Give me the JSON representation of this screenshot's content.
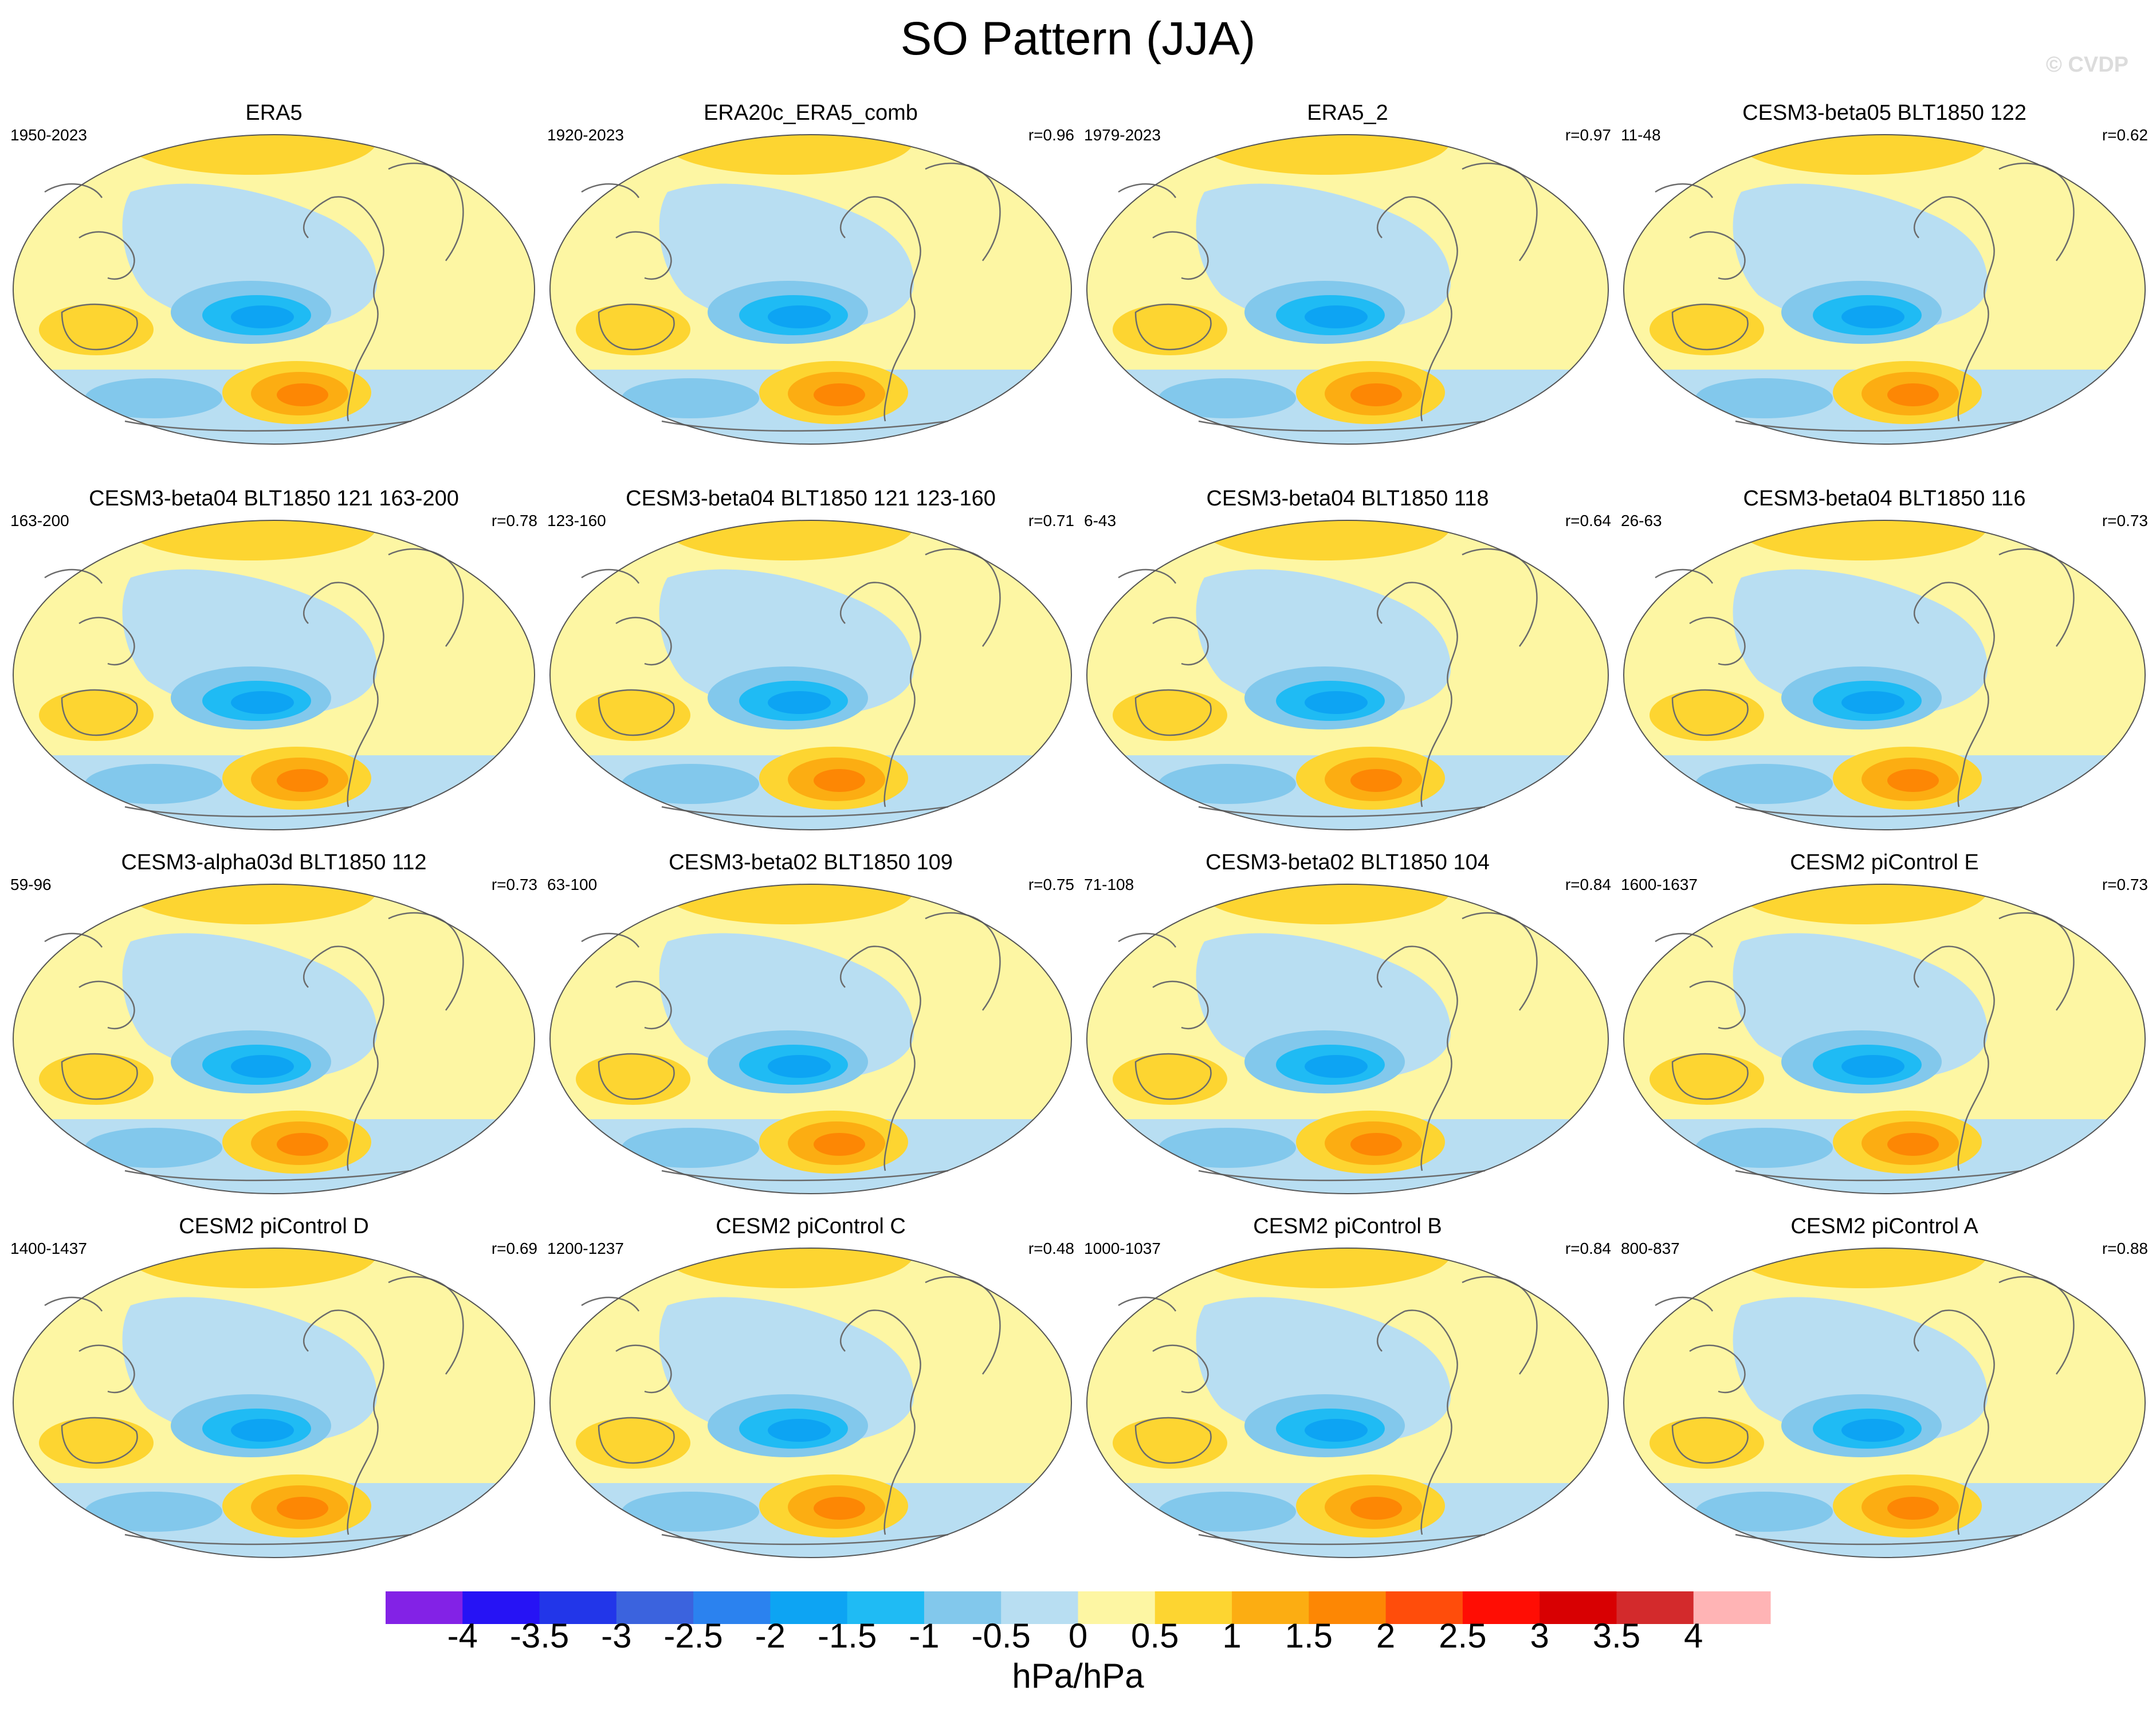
{
  "title": "SO Pattern (JJA)",
  "watermark": "© CVDP",
  "colorbar": {
    "unit_label": "hPa/hPa",
    "tick_labels": [
      "-4",
      "-3.5",
      "-3",
      "-2.5",
      "-2",
      "-1.5",
      "-1",
      "-0.5",
      "0",
      "0.5",
      "1",
      "1.5",
      "2",
      "2.5",
      "3",
      "3.5",
      "4"
    ],
    "colors": [
      "#8322e6",
      "#2613f5",
      "#2236e9",
      "#3b63de",
      "#2b82ef",
      "#0da4f3",
      "#1fbbf4",
      "#82c8ec",
      "#b8def2",
      "#fdf6a3",
      "#fdd531",
      "#fcad12",
      "#fd8704",
      "#ff4d0b",
      "#ff0d04",
      "#d80002",
      "#d32a2c",
      "#ffb4b5"
    ]
  },
  "panels": [
    {
      "title": "ERA5",
      "years": "1950-2023",
      "r": ""
    },
    {
      "title": "ERA20c_ERA5_comb",
      "years": "1920-2023",
      "r": "r=0.96"
    },
    {
      "title": "ERA5_2",
      "years": "1979-2023",
      "r": "r=0.97"
    },
    {
      "title": "CESM3-beta05 BLT1850 122",
      "years": "11-48",
      "r": "r=0.62"
    },
    {
      "title": "CESM3-beta04 BLT1850 121 163-200",
      "years": "163-200",
      "r": "r=0.78"
    },
    {
      "title": "CESM3-beta04 BLT1850 121 123-160",
      "years": "123-160",
      "r": "r=0.71"
    },
    {
      "title": "CESM3-beta04 BLT1850 118",
      "years": "6-43",
      "r": "r=0.64"
    },
    {
      "title": "CESM3-beta04 BLT1850 116",
      "years": "26-63",
      "r": "r=0.73"
    },
    {
      "title": "CESM3-alpha03d BLT1850 112",
      "years": "59-96",
      "r": "r=0.73"
    },
    {
      "title": "CESM3-beta02 BLT1850 109",
      "years": "63-100",
      "r": "r=0.75"
    },
    {
      "title": "CESM3-beta02 BLT1850 104",
      "years": "71-108",
      "r": "r=0.84"
    },
    {
      "title": "CESM2 piControl E",
      "years": "1600-1637",
      "r": "r=0.73"
    },
    {
      "title": "CESM2 piControl D",
      "years": "1400-1437",
      "r": "r=0.69"
    },
    {
      "title": "CESM2 piControl C",
      "years": "1200-1237",
      "r": "r=0.48"
    },
    {
      "title": "CESM2 piControl B",
      "years": "1000-1037",
      "r": "r=0.84"
    },
    {
      "title": "CESM2 piControl A",
      "years": "800-837",
      "r": "r=0.88"
    }
  ]
}
